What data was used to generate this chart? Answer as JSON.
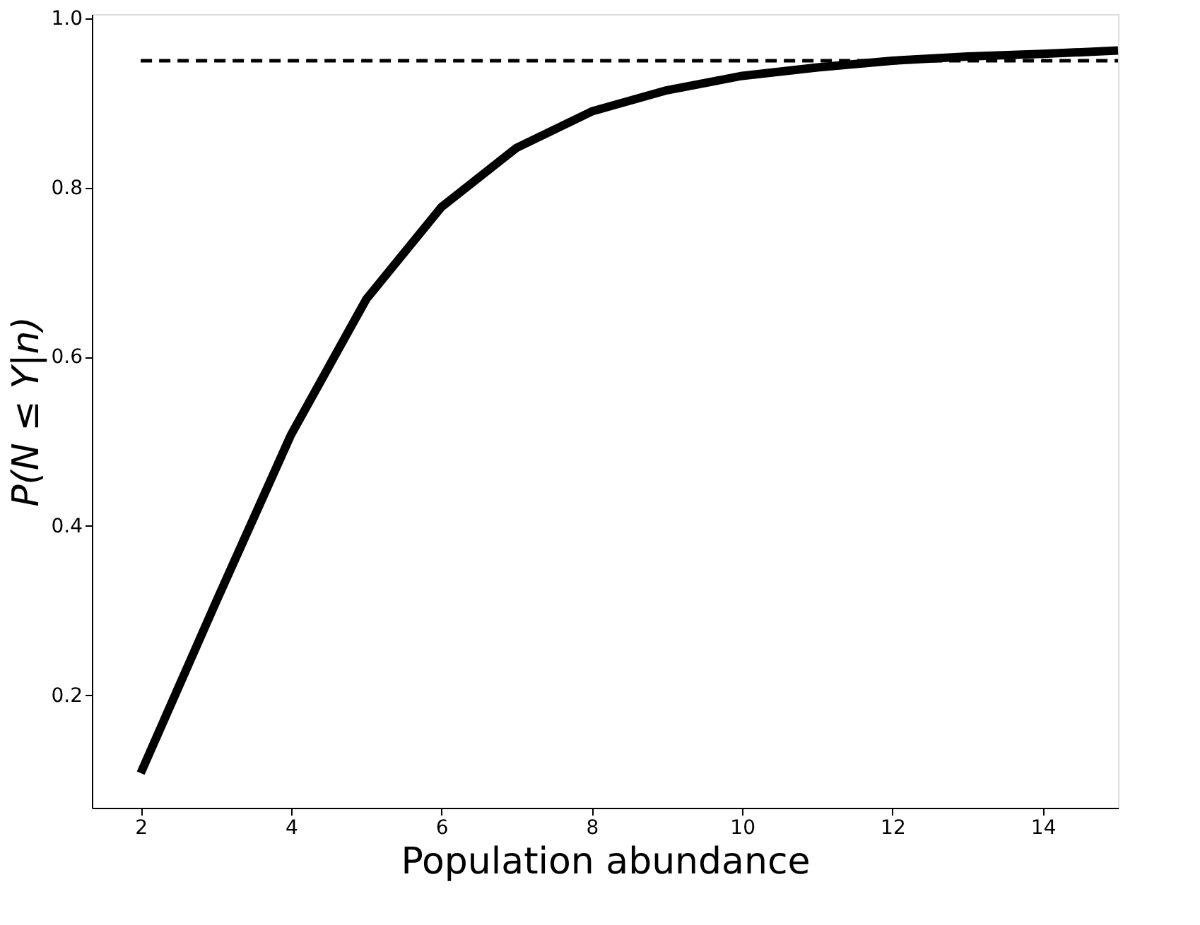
{
  "chart_data": {
    "type": "line",
    "xlabel": "Population abundance",
    "ylabel": "P(N ≤ Y|n)",
    "x": [
      2,
      3,
      4,
      5,
      6,
      7,
      8,
      9,
      10,
      11,
      12,
      13,
      14,
      15
    ],
    "series": [
      {
        "color": "#000000",
        "line_style": "solid",
        "values": [
          0.108,
          0.31,
          0.508,
          0.668,
          0.777,
          0.847,
          0.89,
          0.915,
          0.932,
          0.942,
          0.95,
          0.955,
          0.958,
          0.962
        ]
      },
      {
        "type": "line",
        "color": "#000000",
        "line_style": "dashed",
        "x": [
          2,
          15
        ],
        "values": [
          0.95,
          0.95
        ]
      }
    ],
    "xlim": [
      1.35,
      15.0
    ],
    "ylim": [
      0.067,
      1.005
    ],
    "xticks": [
      2,
      4,
      6,
      8,
      10,
      12,
      14
    ],
    "yticks": [
      {
        "value": 0.2,
        "label": "0.2"
      },
      {
        "value": 0.4,
        "label": "0.4"
      },
      {
        "value": 0.6,
        "label": "0.6"
      },
      {
        "value": 0.8,
        "label": "0.8"
      },
      {
        "value": 1.0,
        "label": "1.0"
      }
    ],
    "grid": false,
    "marker": "none"
  }
}
